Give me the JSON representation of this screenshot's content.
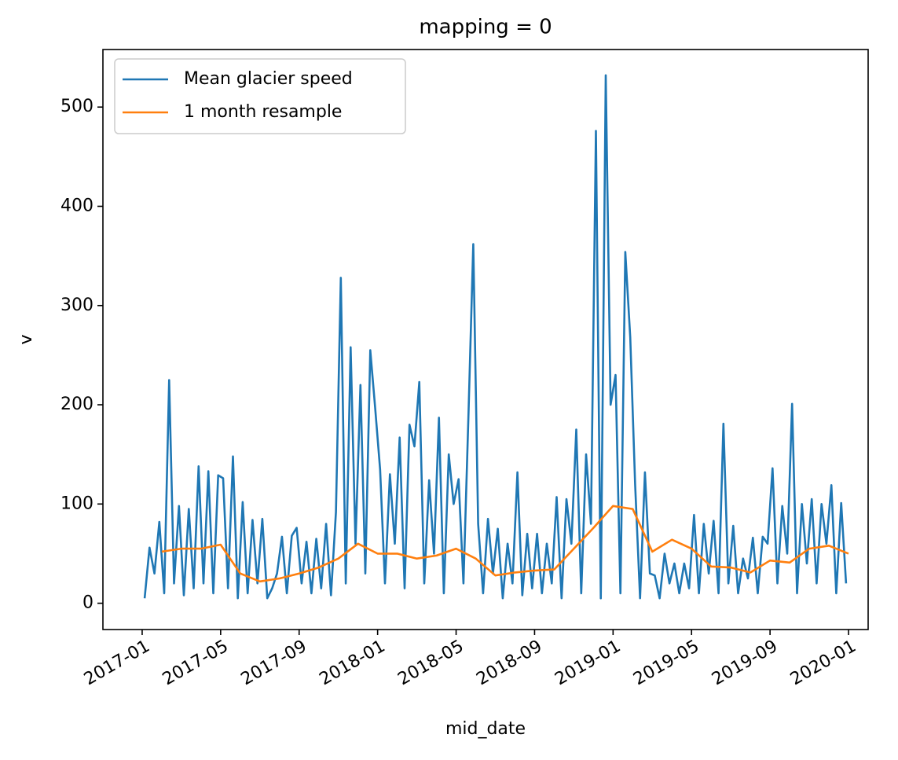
{
  "chart_data": {
    "type": "line",
    "title": "mapping = 0",
    "x_label": "mid_date",
    "y_label": "v",
    "series": [
      {
        "name": "Mean glacier speed",
        "color": "#1f77b4",
        "x": [
          "2017-01",
          "2017-01",
          "2017-01",
          "2017-01",
          "2017-02",
          "2017-02",
          "2017-02",
          "2017-02",
          "2017-03",
          "2017-03",
          "2017-03",
          "2017-03",
          "2017-04",
          "2017-04",
          "2017-04",
          "2017-04",
          "2017-05",
          "2017-05",
          "2017-05",
          "2017-05",
          "2017-06",
          "2017-06",
          "2017-06",
          "2017-06",
          "2017-07",
          "2017-07",
          "2017-07",
          "2017-07",
          "2017-08",
          "2017-08",
          "2017-08",
          "2017-08",
          "2017-09",
          "2017-09",
          "2017-09",
          "2017-09",
          "2017-10",
          "2017-10",
          "2017-10",
          "2017-10",
          "2017-11",
          "2017-11",
          "2017-11",
          "2017-11",
          "2017-12",
          "2017-12",
          "2017-12",
          "2017-12",
          "2018-01",
          "2018-01",
          "2018-01",
          "2018-01",
          "2018-02",
          "2018-02",
          "2018-02",
          "2018-02",
          "2018-03",
          "2018-03",
          "2018-03",
          "2018-03",
          "2018-04",
          "2018-04",
          "2018-04",
          "2018-04",
          "2018-05",
          "2018-05",
          "2018-05",
          "2018-05",
          "2018-06",
          "2018-06",
          "2018-06",
          "2018-06",
          "2018-07",
          "2018-07",
          "2018-07",
          "2018-07",
          "2018-08",
          "2018-08",
          "2018-08",
          "2018-08",
          "2018-09",
          "2018-09",
          "2018-09",
          "2018-09",
          "2018-10",
          "2018-10",
          "2018-10",
          "2018-10",
          "2018-11",
          "2018-11",
          "2018-11",
          "2018-11",
          "2018-12",
          "2018-12",
          "2018-12",
          "2018-12",
          "2019-01",
          "2019-01",
          "2019-01",
          "2019-01",
          "2019-02",
          "2019-02",
          "2019-02",
          "2019-02",
          "2019-03",
          "2019-03",
          "2019-03",
          "2019-03",
          "2019-04",
          "2019-04",
          "2019-04",
          "2019-04",
          "2019-05",
          "2019-05",
          "2019-05",
          "2019-05",
          "2019-06",
          "2019-06",
          "2019-06",
          "2019-06",
          "2019-07",
          "2019-07",
          "2019-07",
          "2019-07",
          "2019-08",
          "2019-08",
          "2019-08",
          "2019-08",
          "2019-09",
          "2019-09",
          "2019-09",
          "2019-09",
          "2019-10",
          "2019-10",
          "2019-10",
          "2019-10",
          "2019-11",
          "2019-11",
          "2019-11",
          "2019-11",
          "2019-12",
          "2019-12",
          "2019-12",
          "2019-12"
        ],
        "values": [
          5,
          56,
          30,
          82,
          10,
          225,
          20,
          98,
          8,
          95,
          15,
          138,
          20,
          133,
          10,
          129,
          126,
          15,
          148,
          5,
          102,
          10,
          84,
          20,
          85,
          5,
          15,
          30,
          67,
          10,
          68,
          76,
          20,
          62,
          10,
          65,
          15,
          80,
          8,
          92,
          328,
          20,
          258,
          60,
          220,
          30,
          255,
          197,
          135,
          20,
          130,
          60,
          167,
          15,
          180,
          158,
          223,
          20,
          124,
          50,
          187,
          10,
          150,
          100,
          125,
          20,
          185,
          362,
          80,
          10,
          85,
          30,
          75,
          5,
          60,
          20,
          132,
          8,
          70,
          15,
          70,
          10,
          60,
          20,
          107,
          5,
          105,
          60,
          175,
          10,
          150,
          80,
          476,
          5,
          532,
          200,
          230,
          10,
          354,
          268,
          120,
          5,
          132,
          30,
          28,
          5,
          50,
          20,
          40,
          10,
          40,
          15,
          89,
          10,
          80,
          30,
          83,
          10,
          181,
          20,
          78,
          10,
          45,
          25,
          66,
          10,
          67,
          60,
          136,
          20,
          98,
          50,
          201,
          10,
          100,
          40,
          105,
          20,
          100,
          60,
          119,
          10,
          101,
          20
        ]
      },
      {
        "name": "1 month resample",
        "color": "#ff7f0e",
        "x": [
          "2017-01",
          "2017-02",
          "2017-03",
          "2017-04",
          "2017-05",
          "2017-06",
          "2017-07",
          "2017-08",
          "2017-09",
          "2017-10",
          "2017-11",
          "2017-12",
          "2018-01",
          "2018-02",
          "2018-03",
          "2018-04",
          "2018-05",
          "2018-06",
          "2018-07",
          "2018-08",
          "2018-09",
          "2018-10",
          "2018-11",
          "2018-12",
          "2019-01",
          "2019-02",
          "2019-03",
          "2019-04",
          "2019-05",
          "2019-06",
          "2019-07",
          "2019-08",
          "2019-09",
          "2019-10",
          "2019-11",
          "2019-12"
        ],
        "values": [
          52,
          55,
          55,
          59,
          30,
          22,
          25,
          30,
          36,
          45,
          60,
          50,
          50,
          45,
          48,
          55,
          45,
          28,
          31,
          33,
          34,
          55,
          76,
          98,
          95,
          52,
          64,
          55,
          37,
          36,
          31,
          43,
          41,
          55,
          58,
          50
        ]
      }
    ],
    "xlim": [
      "2016-11",
      "2020-02"
    ],
    "xticks": [
      "2017-01",
      "2017-05",
      "2017-09",
      "2018-01",
      "2018-05",
      "2018-09",
      "2019-01",
      "2019-05",
      "2019-09",
      "2020-01"
    ],
    "ylim": [
      -26.5,
      558
    ],
    "yticks": [
      0,
      100,
      200,
      300,
      400,
      500
    ],
    "legend": "upper left"
  }
}
